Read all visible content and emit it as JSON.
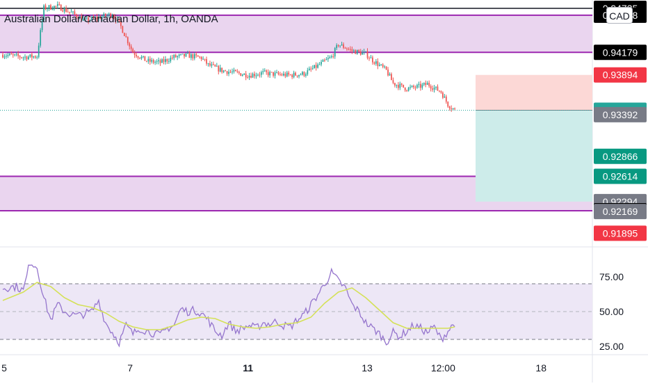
{
  "header": {
    "title": "Australian Dollar/Canadian Dollar, 1h, OANDA",
    "currency_button": "CAD"
  },
  "colors": {
    "up": "#26a69a",
    "down": "#ef5350",
    "zone_fill": "#ead5ef",
    "zone_line": "#9c27b0",
    "rsi_line": "#9575cd",
    "rsi_ma": "#d4e157",
    "rsi_band": "#ede7f6",
    "target_fill": "#cdecea",
    "stop_fill": "#fcd8d6"
  },
  "chart_data": [
    {
      "type": "candlestick",
      "title": "Australian Dollar/Canadian Dollar, 1h, OANDA",
      "x_ticks": [
        "5",
        "7",
        "11",
        "13",
        "12:00",
        "18"
      ],
      "y_range": [
        0.9174,
        0.9484
      ],
      "price_labels": [
        {
          "text": "0.94735",
          "value": 0.94735,
          "bg": "#000000",
          "fg": "#ffffff"
        },
        {
          "text": "0.94648",
          "value": 0.94648,
          "bg": "#000000",
          "fg": "#ffffff"
        },
        {
          "text": "0.94179",
          "value": 0.94179,
          "bg": "#000000",
          "fg": "#ffffff"
        },
        {
          "text": "0.93894",
          "value": 0.93894,
          "bg": "#f23645",
          "fg": "#ffffff"
        },
        {
          "text": "0.93448",
          "value": 0.93448,
          "bg": "#26a69a",
          "fg": "#ffffff"
        },
        {
          "text": "0.93392",
          "value": 0.93392,
          "bg": "#787b86",
          "fg": "#ffffff"
        },
        {
          "text": "0.92866",
          "value": 0.92866,
          "bg": "#089981",
          "fg": "#ffffff"
        },
        {
          "text": "0.92614",
          "value": 0.92614,
          "bg": "#089981",
          "fg": "#ffffff"
        },
        {
          "text": "0.92294",
          "value": 0.92294,
          "bg": "#787b86",
          "fg": "#ffffff"
        },
        {
          "text": "0.92179",
          "value": 0.92179,
          "bg": "#000000",
          "fg": "#ffffff"
        },
        {
          "text": "0.92169",
          "value": 0.92169,
          "bg": "#787b86",
          "fg": "#ffffff"
        },
        {
          "text": "0.91895",
          "value": 0.91895,
          "bg": "#f23645",
          "fg": "#ffffff"
        }
      ],
      "resistance_zone": [
        0.94179,
        0.94648
      ],
      "support_zone": [
        0.92179,
        0.92614
      ],
      "top_line": 0.94735,
      "current_price": 0.93448,
      "position": {
        "entry": 0.93448,
        "stop": 0.93894,
        "target": 0.92294
      },
      "close_path": [
        [
          0,
          0.9415
        ],
        [
          3,
          0.9412
        ],
        [
          5,
          0.9413
        ],
        [
          6,
          0.9474
        ],
        [
          8,
          0.9476
        ],
        [
          10,
          0.9468
        ],
        [
          12,
          0.9458
        ],
        [
          14,
          0.9462
        ],
        [
          16,
          0.9466
        ],
        [
          17,
          0.9455
        ],
        [
          19,
          0.9418
        ],
        [
          21,
          0.9407
        ],
        [
          23,
          0.9405
        ],
        [
          25,
          0.9412
        ],
        [
          27,
          0.9414
        ],
        [
          29,
          0.9411
        ],
        [
          30,
          0.9402
        ],
        [
          32,
          0.9395
        ],
        [
          34,
          0.9392
        ],
        [
          36,
          0.9389
        ],
        [
          38,
          0.9392
        ],
        [
          40,
          0.939
        ],
        [
          42,
          0.9389
        ],
        [
          44,
          0.9391
        ],
        [
          46,
          0.9401
        ],
        [
          48,
          0.9412
        ],
        [
          49,
          0.9428
        ],
        [
          51,
          0.942
        ],
        [
          53,
          0.9416
        ],
        [
          54,
          0.9408
        ],
        [
          56,
          0.9395
        ],
        [
          57,
          0.9379
        ],
        [
          59,
          0.9372
        ],
        [
          61,
          0.9375
        ],
        [
          62,
          0.9378
        ],
        [
          63,
          0.9373
        ],
        [
          64,
          0.9368
        ],
        [
          65,
          0.9352
        ],
        [
          66,
          0.9345
        ]
      ]
    },
    {
      "type": "line",
      "title": "RSI",
      "y_range": [
        20,
        95
      ],
      "y_ticks": [
        "75.00",
        "50.00",
        "25.00"
      ],
      "bands": [
        30,
        70
      ],
      "midline": 50,
      "series": [
        {
          "values_path": [
            [
              0,
              67
            ],
            [
              2,
              68
            ],
            [
              3,
              65
            ],
            [
              4,
              86
            ],
            [
              5,
              82
            ],
            [
              6,
              60
            ],
            [
              7,
              44
            ],
            [
              8,
              55
            ],
            [
              9,
              50
            ],
            [
              10,
              48
            ],
            [
              11,
              47
            ],
            [
              13,
              50
            ],
            [
              14,
              58
            ],
            [
              15,
              42
            ],
            [
              16,
              35
            ],
            [
              17,
              28
            ],
            [
              18,
              40
            ],
            [
              19,
              34
            ],
            [
              20,
              38
            ],
            [
              21,
              36
            ],
            [
              23,
              33
            ],
            [
              24,
              38
            ],
            [
              25,
              40
            ],
            [
              26,
              52
            ],
            [
              27,
              50
            ],
            [
              28,
              51
            ],
            [
              29,
              49
            ],
            [
              30,
              44
            ],
            [
              31,
              36
            ],
            [
              32,
              33
            ],
            [
              33,
              42
            ],
            [
              34,
              36
            ],
            [
              35,
              38
            ],
            [
              36,
              40
            ],
            [
              37,
              38
            ],
            [
              38,
              42
            ],
            [
              39,
              41
            ],
            [
              40,
              43
            ],
            [
              41,
              40
            ],
            [
              42,
              39
            ],
            [
              43,
              44
            ],
            [
              44,
              48
            ],
            [
              45,
              55
            ],
            [
              46,
              62
            ],
            [
              47,
              70
            ],
            [
              48,
              78
            ],
            [
              49,
              72
            ],
            [
              50,
              67
            ],
            [
              51,
              55
            ],
            [
              52,
              50
            ],
            [
              53,
              42
            ],
            [
              54,
              38
            ],
            [
              55,
              34
            ],
            [
              56,
              28
            ],
            [
              57,
              35
            ],
            [
              58,
              32
            ],
            [
              59,
              36
            ],
            [
              60,
              40
            ],
            [
              61,
              38
            ],
            [
              62,
              35
            ],
            [
              63,
              39
            ],
            [
              64,
              30
            ],
            [
              65,
              36
            ],
            [
              66,
              42
            ]
          ]
        },
        {
          "values_path": [
            [
              0,
              58
            ],
            [
              3,
              64
            ],
            [
              5,
              71
            ],
            [
              7,
              68
            ],
            [
              9,
              60
            ],
            [
              11,
              55
            ],
            [
              13,
              53
            ],
            [
              15,
              49
            ],
            [
              17,
              43
            ],
            [
              19,
              39
            ],
            [
              21,
              37
            ],
            [
              23,
              37
            ],
            [
              25,
              40
            ],
            [
              27,
              44
            ],
            [
              29,
              46
            ],
            [
              31,
              45
            ],
            [
              33,
              41
            ],
            [
              35,
              39
            ],
            [
              37,
              38
            ],
            [
              39,
              39
            ],
            [
              41,
              41
            ],
            [
              43,
              42
            ],
            [
              45,
              46
            ],
            [
              47,
              56
            ],
            [
              49,
              64
            ],
            [
              51,
              67
            ],
            [
              53,
              60
            ],
            [
              55,
              51
            ],
            [
              57,
              42
            ],
            [
              59,
              38
            ],
            [
              61,
              38
            ],
            [
              63,
              38
            ],
            [
              65,
              38
            ],
            [
              66,
              39
            ]
          ]
        }
      ]
    }
  ]
}
